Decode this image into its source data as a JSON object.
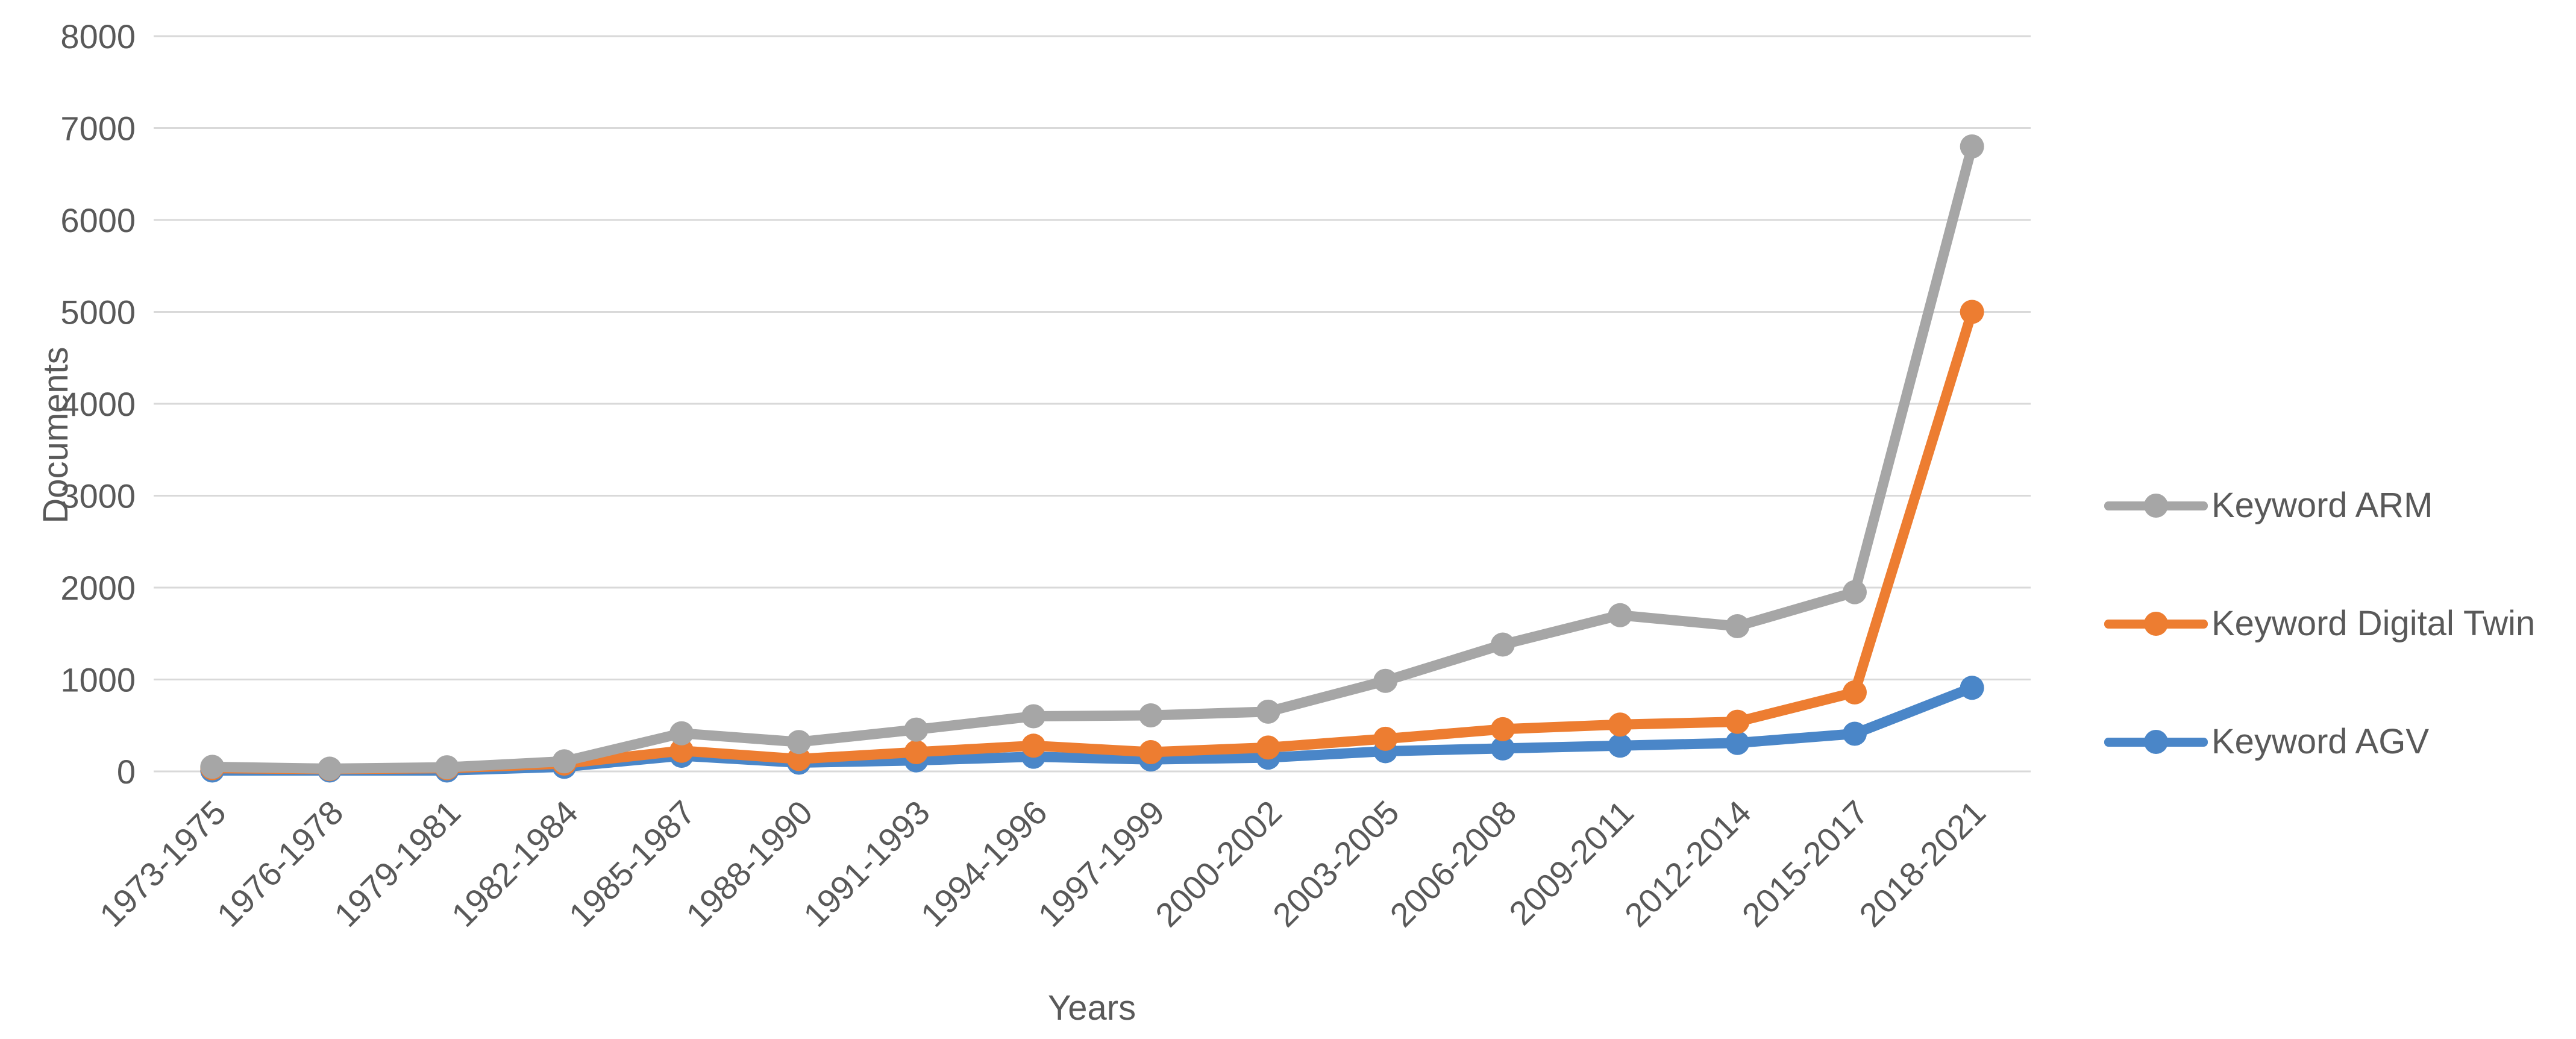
{
  "chart_data": {
    "type": "line",
    "title": "",
    "xlabel": "Years",
    "ylabel": "Documents",
    "ylim": [
      0,
      8000
    ],
    "ytick_step": 1000,
    "yticks": [
      0,
      1000,
      2000,
      3000,
      4000,
      5000,
      6000,
      7000,
      8000
    ],
    "grid": true,
    "legend_position": "right",
    "marker": "circle",
    "categories": [
      "1973-1975",
      "1976-1978",
      "1979-1981",
      "1982-1984",
      "1985-1987",
      "1988-1990",
      "1991-1993",
      "1994-1996",
      "1997-1999",
      "2000-2002",
      "2003-2005",
      "2006-2008",
      "2009-2011",
      "2012-2014",
      "2015-2017",
      "2018-2021"
    ],
    "series": [
      {
        "name": "Keyword ARM",
        "color": "#A6A6A6",
        "values": [
          50,
          30,
          45,
          110,
          415,
          320,
          455,
          600,
          610,
          650,
          985,
          1380,
          1700,
          1580,
          1950,
          6800
        ]
      },
      {
        "name": "Keyword Digital Twin",
        "color": "#ED7D31",
        "values": [
          35,
          25,
          35,
          85,
          225,
          135,
          210,
          280,
          210,
          260,
          355,
          460,
          510,
          540,
          860,
          5000
        ]
      },
      {
        "name": "Keyword AGV",
        "color": "#4A86C8",
        "values": [
          10,
          10,
          10,
          50,
          170,
          95,
          120,
          160,
          130,
          150,
          220,
          250,
          280,
          310,
          410,
          910
        ]
      }
    ]
  },
  "colors": {
    "gridline": "#D9D9D9",
    "axis_text": "#595959",
    "background": "#FFFFFF"
  }
}
